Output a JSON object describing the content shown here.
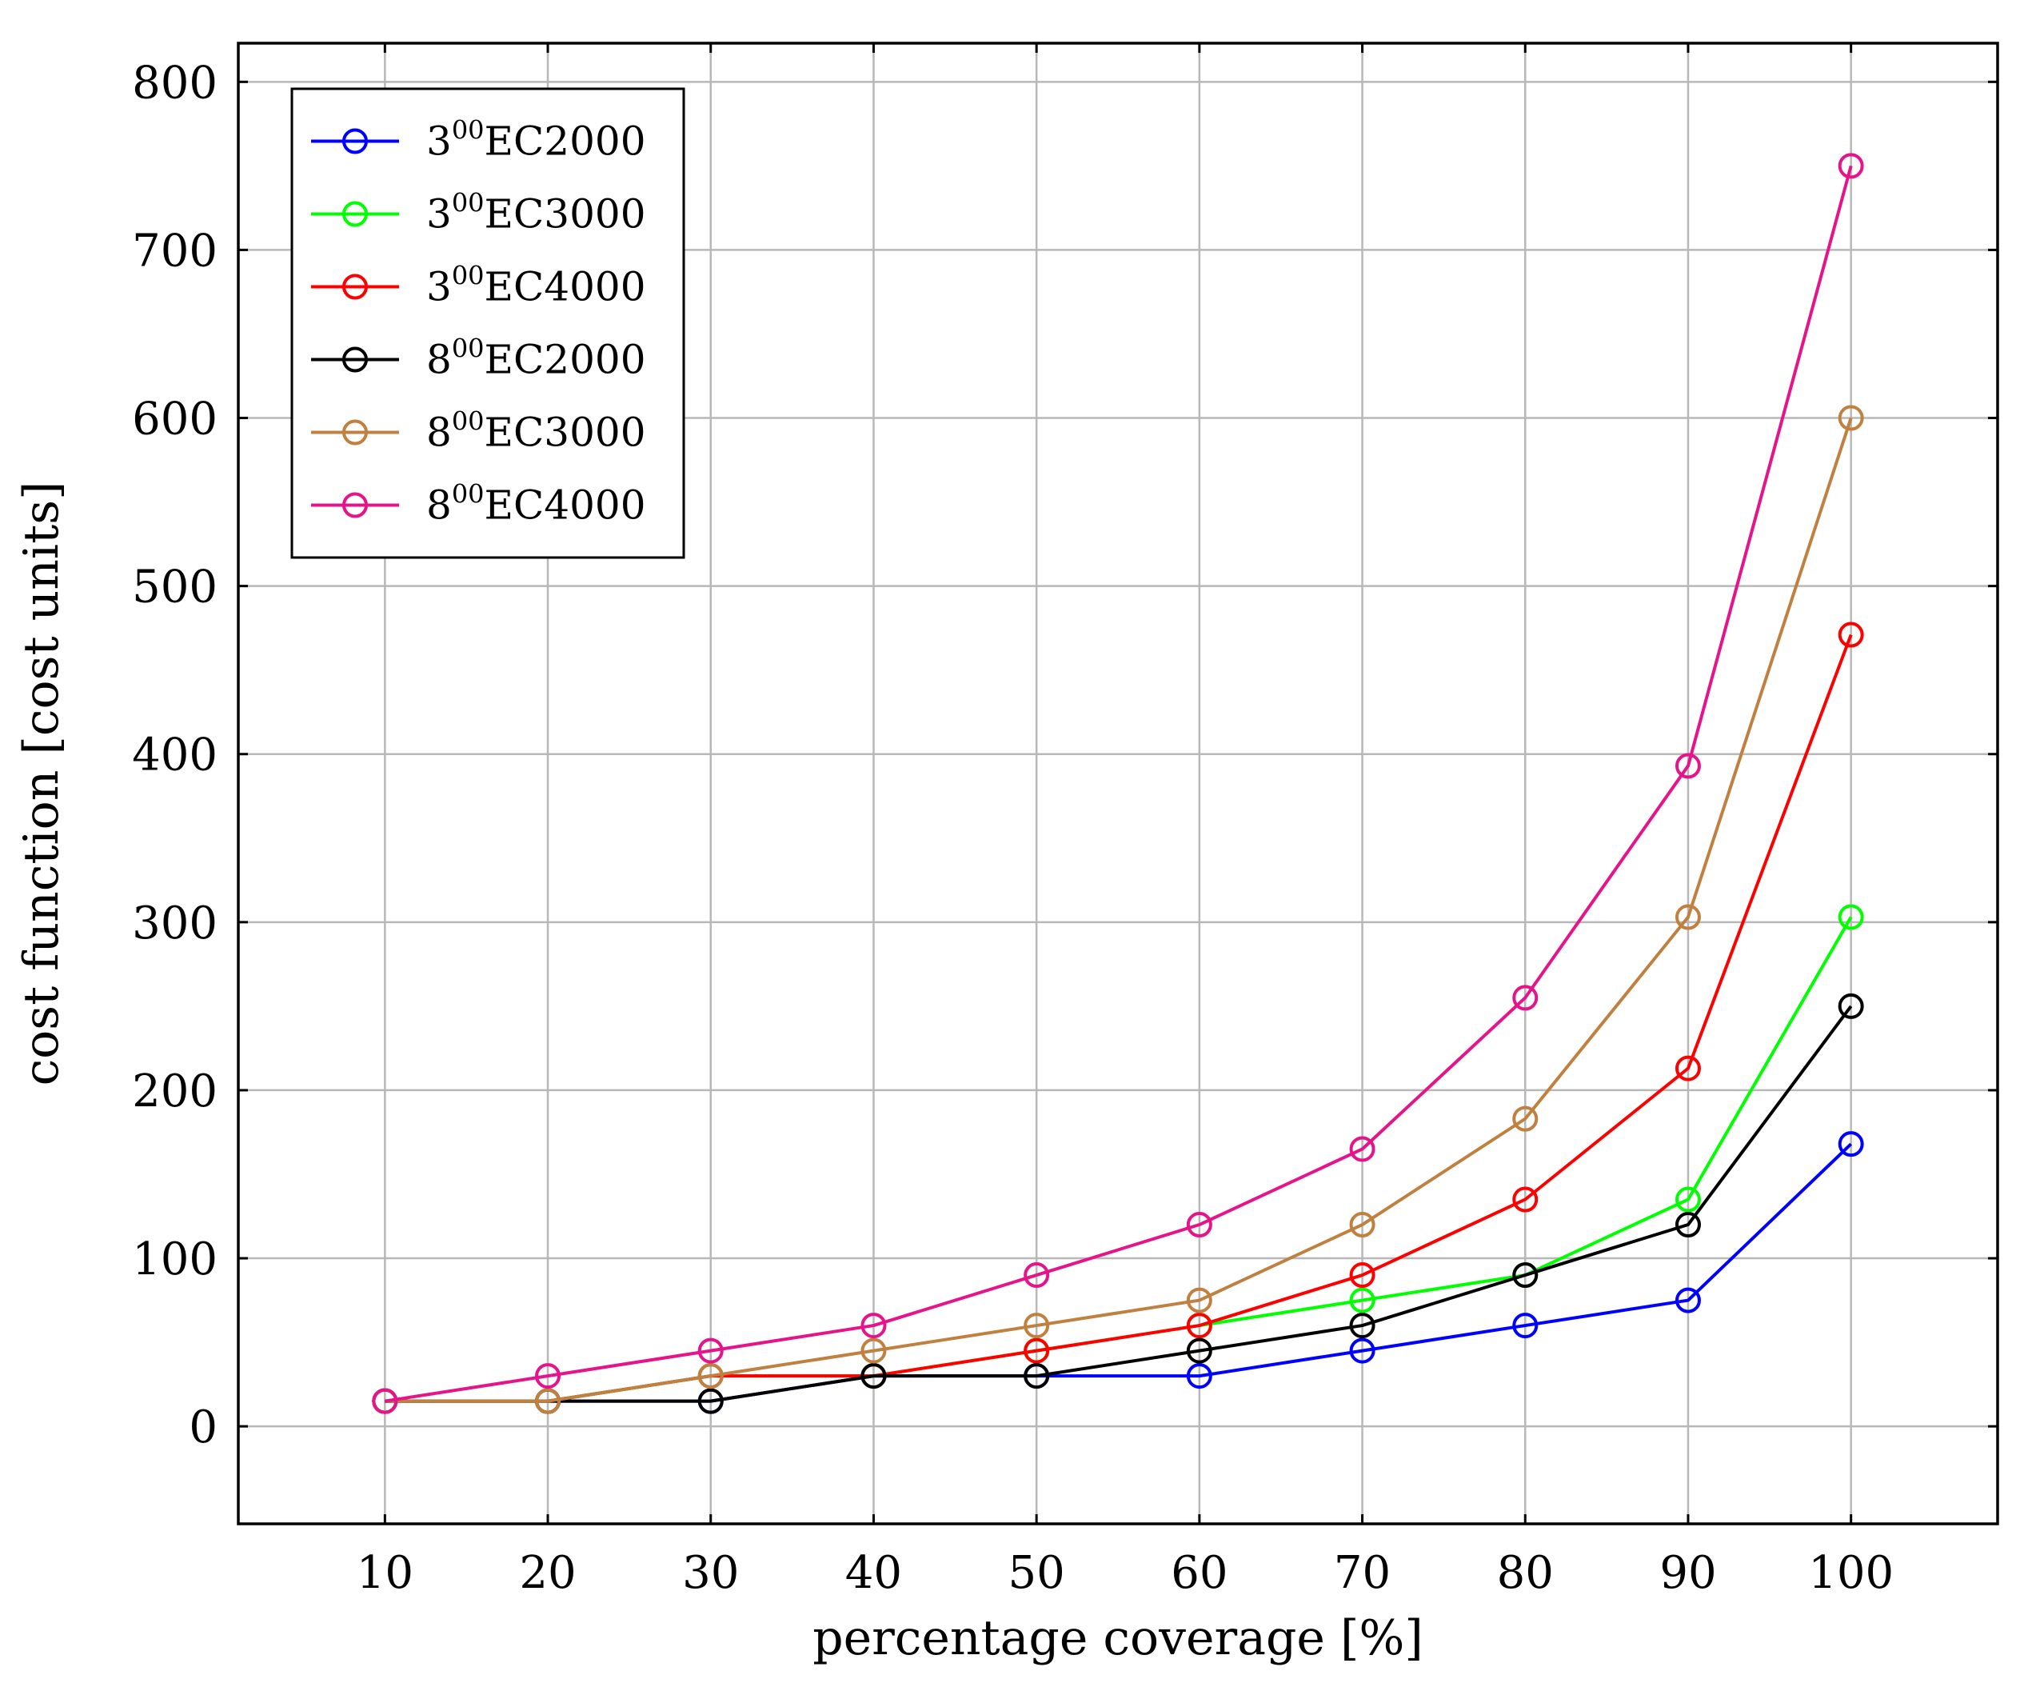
{
  "chart_data": {
    "type": "line",
    "title": "",
    "xlabel": "percentage coverage [%]",
    "ylabel": "cost function [cost units]",
    "x": [
      10,
      20,
      30,
      40,
      50,
      60,
      70,
      80,
      90,
      100
    ],
    "xlim": [
      1,
      109
    ],
    "ylim": [
      -58,
      823
    ],
    "xticks": [
      10,
      20,
      30,
      40,
      50,
      60,
      70,
      80,
      90,
      100
    ],
    "yticks": [
      0,
      100,
      200,
      300,
      400,
      500,
      600,
      700,
      800
    ],
    "grid": true,
    "legend_position": "top-left",
    "series": [
      {
        "name": "3^{00}EC2000",
        "base": "3",
        "sup": "00",
        "suffix": "EC2000",
        "color": "#0000ff",
        "values": [
          15,
          15,
          15,
          30,
          30,
          30,
          45,
          60,
          75,
          168
        ]
      },
      {
        "name": "3^{00}EC3000",
        "base": "3",
        "sup": "00",
        "suffix": "EC3000",
        "color": "#00ff00",
        "values": [
          15,
          15,
          30,
          30,
          45,
          60,
          75,
          90,
          135,
          303
        ]
      },
      {
        "name": "3^{00}EC4000",
        "base": "3",
        "sup": "00",
        "suffix": "EC4000",
        "color": "#ff0000",
        "values": [
          15,
          15,
          30,
          30,
          45,
          60,
          90,
          135,
          213,
          471
        ]
      },
      {
        "name": "8^{00}EC2000",
        "base": "8",
        "sup": "00",
        "suffix": "EC2000",
        "color": "#000000",
        "values": [
          15,
          15,
          15,
          30,
          30,
          45,
          60,
          90,
          120,
          250
        ]
      },
      {
        "name": "8^{00}EC3000",
        "base": "8",
        "sup": "00",
        "suffix": "EC3000",
        "color": "#bf8040",
        "values": [
          15,
          15,
          30,
          45,
          60,
          75,
          120,
          183,
          303,
          600
        ]
      },
      {
        "name": "8^{00}EC4000",
        "base": "8",
        "sup": "00",
        "suffix": "EC4000",
        "color": "#e6148a",
        "values": [
          15,
          30,
          45,
          60,
          90,
          120,
          165,
          255,
          393,
          750
        ]
      }
    ]
  }
}
